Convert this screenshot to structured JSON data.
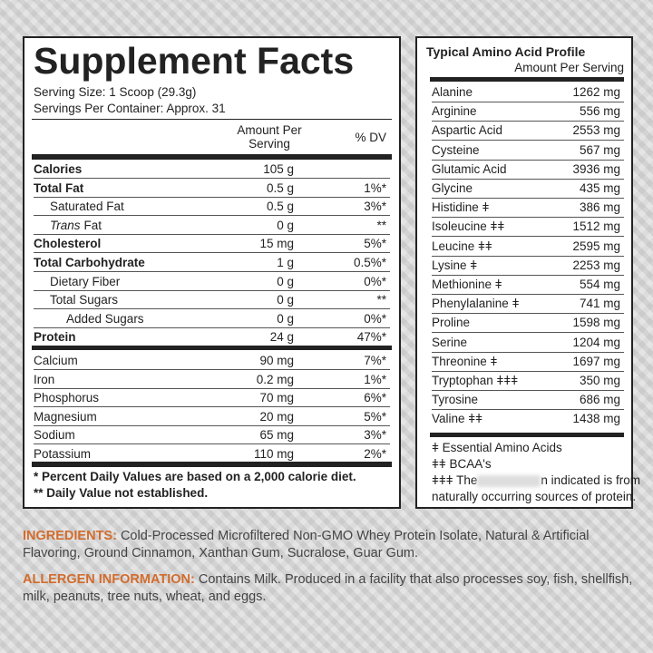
{
  "supplement_facts": {
    "title": "Supplement Facts",
    "serving_size": "Serving Size: 1 Scoop (29.3g)",
    "servings_per_container": "Servings Per Container: Approx. 31",
    "header": {
      "amount": "Amount Per Serving",
      "dv": "% DV"
    },
    "rows": [
      {
        "name": "Calories",
        "amount": "105 g"
      },
      {
        "name": "Total Fat",
        "amount": "0.5 g",
        "dv": "1%*"
      },
      {
        "name": "Saturated Fat",
        "amount": "0.5 g",
        "dv": "3%*"
      },
      {
        "name_italic": "Trans",
        "name": "Fat",
        "amount": "0 g",
        "dv": "**"
      },
      {
        "name": "Cholesterol",
        "amount": "15 mg",
        "dv": "5%*"
      },
      {
        "name": "Total Carbohydrate",
        "amount": "1 g",
        "dv": "0.5%*"
      },
      {
        "name": "Dietary Fiber",
        "amount": "0 g",
        "dv": "0%*"
      },
      {
        "name": "Total Sugars",
        "amount": "0 g",
        "dv": "**"
      },
      {
        "name": "Added Sugars",
        "amount": "0 g",
        "dv": "0%*"
      },
      {
        "name": "Protein",
        "amount": "24 g",
        "dv": "47%*"
      },
      {
        "name": "Calcium",
        "amount": "90 mg",
        "dv": "7%*"
      },
      {
        "name": "Iron",
        "amount": "0.2 mg",
        "dv": "1%*"
      },
      {
        "name": "Phosphorus",
        "amount": "70 mg",
        "dv": "6%*"
      },
      {
        "name": "Magnesium",
        "amount": "20 mg",
        "dv": "5%*"
      },
      {
        "name": "Sodium",
        "amount": "65 mg",
        "dv": "3%*"
      },
      {
        "name": "Potassium",
        "amount": "110 mg",
        "dv": "2%*"
      }
    ],
    "footnotes": [
      "* Percent Daily Values are based on a 2,000 calorie diet.",
      "** Daily Value not established."
    ]
  },
  "amino_profile": {
    "title": "Typical Amino Acid Profile",
    "subtitle": "Amount Per Serving",
    "rows": [
      [
        "Alanine",
        "1262 mg"
      ],
      [
        "Arginine",
        "556 mg"
      ],
      [
        "Aspartic Acid",
        "2553 mg"
      ],
      [
        "Cysteine",
        "567 mg"
      ],
      [
        "Glutamic Acid",
        "3936 mg"
      ],
      [
        "Glycine",
        "435 mg"
      ],
      [
        "Histidine ǂ",
        "386 mg"
      ],
      [
        "Isoleucine ǂǂ",
        "1512 mg"
      ],
      [
        "Leucine ǂǂ",
        "2595 mg"
      ],
      [
        "Lysine ǂ",
        "2253 mg"
      ],
      [
        "Methionine ǂ",
        "554 mg"
      ],
      [
        "Phenylalanine ǂ",
        "741 mg"
      ],
      [
        "Proline",
        "1598 mg"
      ],
      [
        "Serine",
        "1204 mg"
      ],
      [
        "Threonine ǂ",
        "1697 mg"
      ],
      [
        "Tryptophan ǂǂǂ",
        "350 mg"
      ],
      [
        "Tyrosine",
        "686 mg"
      ],
      [
        "Valine ǂǂ",
        "1438 mg"
      ]
    ],
    "legend": {
      "essential": "ǂ Essential Amino Acids",
      "bcaa": "ǂǂ BCAA's",
      "note_start": "ǂǂǂ The",
      "note_mid": "n indicated is from",
      "note_end": "naturally occurring sources of protein."
    }
  },
  "ingredients": {
    "label": "INGREDIENTS:",
    "text": "Cold-Processed Microfiltered Non-GMO Whey Protein Isolate, Natural & Artificial Flavoring, Ground Cinnamon, Xanthan Gum, Sucralose, Guar Gum."
  },
  "allergen": {
    "label": "ALLERGEN INFORMATION:",
    "text": "Contains Milk. Produced in a facility that also processes soy, fish, shellfish, milk, peanuts, tree nuts, wheat, and eggs."
  }
}
